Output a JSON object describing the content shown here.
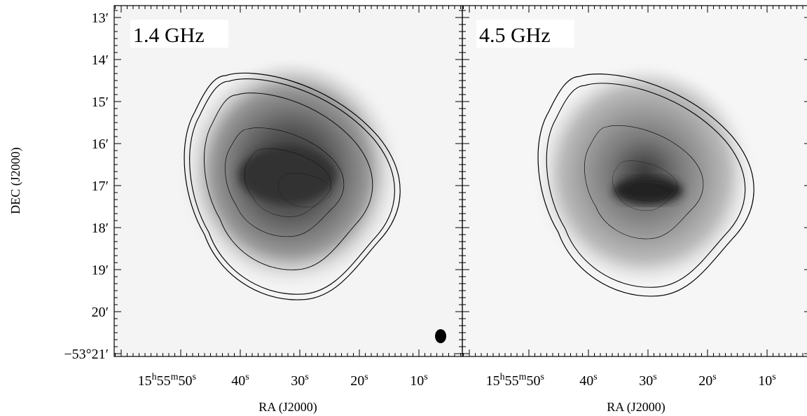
{
  "y_axis_label": "DEC (J2000)",
  "y_tick_labels": [
    "13′",
    "14′",
    "15′",
    "16′",
    "17′",
    "18′",
    "19′",
    "20′",
    "−53°21′"
  ],
  "panels": [
    {
      "label": "1.4 GHz",
      "x_axis_label": "RA (J2000)",
      "x_tick_labels": [
        [
          "15",
          "h",
          "55",
          "m",
          "50",
          "s"
        ],
        [
          "40",
          "s"
        ],
        [
          "30",
          "s"
        ],
        [
          "20",
          "s"
        ],
        [
          "10",
          "s"
        ]
      ]
    },
    {
      "label": "4.5 GHz",
      "x_axis_label": "RA (J2000)",
      "x_tick_labels": [
        [
          "15",
          "h",
          "55",
          "m",
          "50",
          "s"
        ],
        [
          "40",
          "s"
        ],
        [
          "30",
          "s"
        ],
        [
          "20",
          "s"
        ],
        [
          "10",
          "s"
        ]
      ]
    }
  ]
}
